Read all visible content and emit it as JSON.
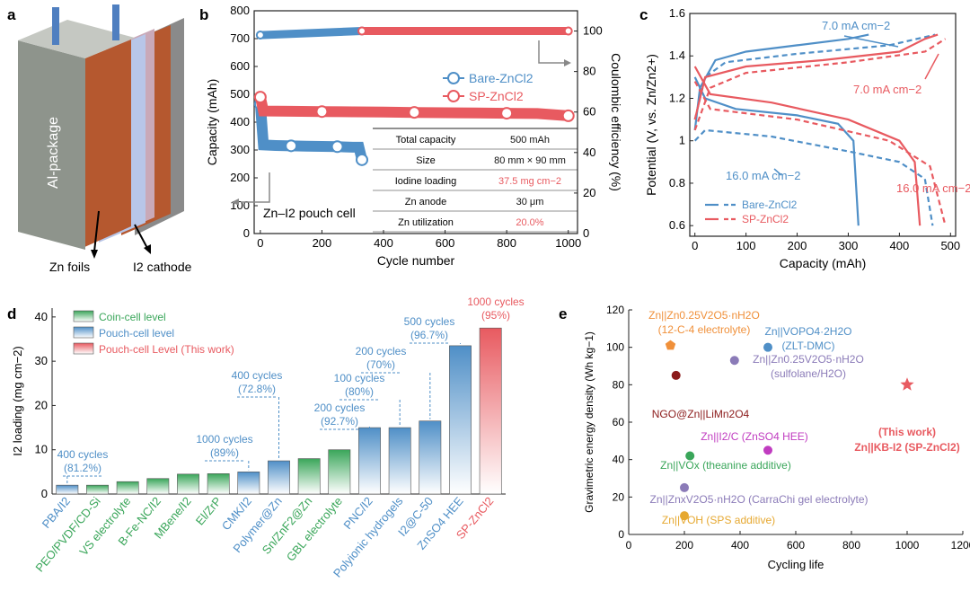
{
  "colors": {
    "blue": "#4f8fc7",
    "red": "#e85a60",
    "green": "#3aa65a",
    "orange": "#f0903a",
    "purple": "#8b7bb8",
    "magenta": "#c03cc0",
    "darkred": "#8b1a1a",
    "yellow": "#e6a830",
    "black": "#1a1a1a"
  },
  "panel_labels": [
    "a",
    "b",
    "c",
    "d",
    "e"
  ],
  "panel_a": {
    "package_label": "Al-package",
    "labels": [
      "Zn foils",
      "I2 cathode"
    ]
  },
  "chart_data": [
    {
      "type": "scatter",
      "id": "b",
      "xlabel": "Cycle number",
      "ylabel": "Capacity (mAh)",
      "y2label": "Coulombic efficiency (%)",
      "xlim": [
        -20,
        1030
      ],
      "ylim": [
        0,
        800
      ],
      "y2lim": [
        0,
        110
      ],
      "xticks": [
        0,
        200,
        400,
        600,
        800,
        1000
      ],
      "yticks": [
        0,
        100,
        200,
        300,
        400,
        500,
        600,
        700,
        800
      ],
      "y2ticks": [
        0,
        20,
        40,
        60,
        80,
        100
      ],
      "legend": [
        {
          "name": "Bare-ZnCl2",
          "color": "blue"
        },
        {
          "name": "SP-ZnCl2",
          "color": "red"
        }
      ],
      "annotation": "Zn–I2 pouch cell",
      "table": [
        {
          "key": "Total capacity",
          "value": "500 mAh",
          "highlight": false
        },
        {
          "key": "Size",
          "value": "80 mm × 90 mm",
          "highlight": false
        },
        {
          "key": "Iodine loading",
          "value": "37.5 mg cm−2",
          "highlight": true
        },
        {
          "key": "Zn anode",
          "value": "30 μm",
          "highlight": false
        },
        {
          "key": "Zn utilization",
          "value": "20.0%",
          "highlight": true
        }
      ],
      "series": [
        {
          "name": "Bare-ZnCl2 capacity",
          "color": "blue",
          "points": [
            [
              0,
              465
            ],
            [
              10,
              318
            ],
            [
              50,
              316
            ],
            [
              100,
              315
            ],
            [
              150,
              314
            ],
            [
              200,
              313
            ],
            [
              250,
              312
            ],
            [
              300,
              310
            ],
            [
              320,
              310
            ],
            [
              330,
              265
            ]
          ]
        },
        {
          "name": "SP-ZnCl2 capacity",
          "color": "red",
          "points": [
            [
              0,
              490
            ],
            [
              10,
              440
            ],
            [
              100,
              439
            ],
            [
              200,
              438
            ],
            [
              300,
              437
            ],
            [
              400,
              436
            ],
            [
              500,
              435
            ],
            [
              600,
              434
            ],
            [
              700,
              433
            ],
            [
              800,
              432
            ],
            [
              900,
              431
            ],
            [
              1000,
              423
            ]
          ]
        },
        {
          "name": "Bare-ZnCl2 CE",
          "color": "blue",
          "axis": "y2",
          "points": [
            [
              0,
              98
            ],
            [
              330,
              100
            ]
          ]
        },
        {
          "name": "SP-ZnCl2 CE",
          "color": "red",
          "axis": "y2",
          "points": [
            [
              330,
              100
            ],
            [
              1000,
              100
            ]
          ]
        }
      ]
    },
    {
      "type": "line",
      "id": "c",
      "xlabel": "Capacity (mAh)",
      "ylabel": "Potential (V, vs. Zn/Zn2+)",
      "xlim": [
        -10,
        510
      ],
      "ylim": [
        0.55,
        1.6
      ],
      "xticks": [
        0,
        100,
        200,
        300,
        400,
        500
      ],
      "yticks": [
        0.6,
        0.8,
        1.0,
        1.2,
        1.4,
        1.6
      ],
      "legend": [
        {
          "name": "Bare-ZnCl2",
          "color": "blue"
        },
        {
          "name": "SP-ZnCl2",
          "color": "red"
        }
      ],
      "annotations": [
        "7.0 mA cm−2",
        "7.0 mA cm−2",
        "16.0 mA cm−2",
        "16.0 mA cm−2"
      ],
      "series": [
        {
          "name": "Bare 7.0 charge",
          "color": "blue",
          "dash": false,
          "points": [
            [
              0,
              1.05
            ],
            [
              10,
              1.25
            ],
            [
              40,
              1.38
            ],
            [
              100,
              1.42
            ],
            [
              200,
              1.45
            ],
            [
              300,
              1.48
            ],
            [
              340,
              1.5
            ]
          ]
        },
        {
          "name": "Bare 7.0 discharge",
          "color": "blue",
          "dash": false,
          "points": [
            [
              0,
              1.3
            ],
            [
              20,
              1.2
            ],
            [
              80,
              1.15
            ],
            [
              200,
              1.12
            ],
            [
              280,
              1.08
            ],
            [
              310,
              1.0
            ],
            [
              320,
              0.6
            ]
          ]
        },
        {
          "name": "Bare 16.0 charge",
          "color": "blue",
          "dash": true,
          "points": [
            [
              0,
              1.1
            ],
            [
              20,
              1.3
            ],
            [
              60,
              1.37
            ],
            [
              200,
              1.41
            ],
            [
              380,
              1.45
            ],
            [
              470,
              1.5
            ]
          ]
        },
        {
          "name": "Bare 16.0 discharge",
          "color": "blue",
          "dash": true,
          "points": [
            [
              0,
              1.0
            ],
            [
              20,
              1.05
            ],
            [
              150,
              1.02
            ],
            [
              300,
              0.95
            ],
            [
              400,
              0.9
            ],
            [
              450,
              0.82
            ],
            [
              465,
              0.6
            ]
          ]
        },
        {
          "name": "SP 7.0 charge",
          "color": "red",
          "dash": false,
          "points": [
            [
              0,
              1.1
            ],
            [
              20,
              1.3
            ],
            [
              100,
              1.35
            ],
            [
              250,
              1.38
            ],
            [
              400,
              1.42
            ],
            [
              450,
              1.48
            ],
            [
              475,
              1.5
            ]
          ]
        },
        {
          "name": "SP 7.0 discharge",
          "color": "red",
          "dash": false,
          "points": [
            [
              0,
              1.35
            ],
            [
              30,
              1.22
            ],
            [
              150,
              1.18
            ],
            [
              300,
              1.1
            ],
            [
              400,
              1.0
            ],
            [
              430,
              0.9
            ],
            [
              440,
              0.6
            ]
          ]
        },
        {
          "name": "SP 16.0 charge",
          "color": "red",
          "dash": true,
          "points": [
            [
              0,
              1.05
            ],
            [
              30,
              1.25
            ],
            [
              100,
              1.32
            ],
            [
              300,
              1.37
            ],
            [
              450,
              1.42
            ],
            [
              490,
              1.48
            ]
          ]
        },
        {
          "name": "SP 16.0 discharge",
          "color": "red",
          "dash": true,
          "points": [
            [
              0,
              1.28
            ],
            [
              30,
              1.15
            ],
            [
              200,
              1.1
            ],
            [
              380,
              1.0
            ],
            [
              460,
              0.88
            ],
            [
              490,
              0.6
            ]
          ]
        }
      ]
    },
    {
      "type": "bar",
      "id": "d",
      "ylabel": "I2 loading (mg cm−2)",
      "ylim": [
        0,
        42
      ],
      "yticks": [
        0,
        10,
        20,
        30,
        40
      ],
      "legend": [
        {
          "name": "Coin-cell level",
          "color": "green"
        },
        {
          "name": "Pouch-cell level",
          "color": "blue"
        },
        {
          "name": "Pouch-cell Level (This work)",
          "color": "red"
        }
      ],
      "categories": [
        "PBA/I2",
        "PEO/PVDF/CD-Si",
        "VS electrolyte",
        "B-Fe-NC/I2",
        "MBene/I2",
        "El/ZrP",
        "CMK/I2",
        "Polymer@Zn",
        "Sn/ZnF2@Zn",
        "GBL electrolyte",
        "PNC/I2",
        "Polyionic hydrogels",
        "I2@C-50",
        "ZnSO4 HEE",
        "SP-ZnCl2"
      ],
      "values": [
        2.0,
        2.0,
        2.8,
        3.5,
        4.5,
        4.6,
        5.0,
        7.5,
        8.0,
        10.0,
        15.0,
        15.0,
        16.5,
        33.5,
        37.5
      ],
      "levels": [
        "pouch",
        "coin",
        "coin",
        "coin",
        "coin",
        "coin",
        "pouch",
        "pouch",
        "coin",
        "coin",
        "pouch",
        "pouch",
        "pouch",
        "pouch",
        "this"
      ],
      "annotations": [
        {
          "text": "400 cycles",
          "sub": "(81.2%)",
          "bar": 0
        },
        {
          "text": "1000 cycles",
          "sub": "(89%)",
          "bar": 6
        },
        {
          "text": "400 cycles",
          "sub": "(72.8%)",
          "bar": 7
        },
        {
          "text": "200 cycles",
          "sub": "(92.7%)",
          "bar": 10
        },
        {
          "text": "100 cycles",
          "sub": "(80%)",
          "bar": 11
        },
        {
          "text": "200 cycles",
          "sub": "(70%)",
          "bar": 12
        },
        {
          "text": "500 cycles",
          "sub": "(96.7%)",
          "bar": 13
        },
        {
          "text": "1000 cycles",
          "sub": "(95%)",
          "bar": 14
        }
      ]
    },
    {
      "type": "scatter",
      "id": "e",
      "xlabel": "Cycling life",
      "ylabel": "Gravimetric energy density (Wh kg−1)",
      "xlim": [
        0,
        1200
      ],
      "ylim": [
        0,
        120
      ],
      "xticks": [
        0,
        200,
        400,
        600,
        800,
        1000,
        1200
      ],
      "yticks": [
        0,
        20,
        40,
        60,
        80,
        100,
        120
      ],
      "points": [
        {
          "x": 150,
          "y": 101,
          "label": "Zn||Zn0.25V2O5·nH2O",
          "label2": "(12-C-4 electrolyte)",
          "color": "orange",
          "marker": "pentagon"
        },
        {
          "x": 500,
          "y": 100,
          "label": "Zn||VOPO4·2H2O",
          "label2": "(ZLT-DMC)",
          "color": "blue",
          "marker": "circle"
        },
        {
          "x": 380,
          "y": 93,
          "label": "Zn||Zn0.25V2O5·nH2O",
          "label2": "(sulfolane/H2O)",
          "color": "purple",
          "marker": "circle"
        },
        {
          "x": 170,
          "y": 85,
          "label": "NGO@Zn||LiMn2O4",
          "label2": "",
          "color": "darkred",
          "marker": "circle"
        },
        {
          "x": 1000,
          "y": 80,
          "label": "(This work)",
          "label2": "Zn||KB-I2 (SP-ZnCl2)",
          "color": "red",
          "marker": "star"
        },
        {
          "x": 500,
          "y": 45,
          "label": "Zn||I2/C (ZnSO4 HEE)",
          "label2": "",
          "color": "magenta",
          "marker": "circle"
        },
        {
          "x": 220,
          "y": 42,
          "label": "Zn||VOx (theanine additive)",
          "label2": "",
          "color": "green",
          "marker": "circle"
        },
        {
          "x": 200,
          "y": 25,
          "label": "Zn||ZnxV2O5·nH2O (CarraChi gel electrolyte)",
          "label2": "",
          "color": "purple",
          "marker": "circle"
        },
        {
          "x": 200,
          "y": 10,
          "label": "Zn||VOH (SPS additive)",
          "label2": "",
          "color": "yellow",
          "marker": "circle"
        }
      ]
    }
  ]
}
